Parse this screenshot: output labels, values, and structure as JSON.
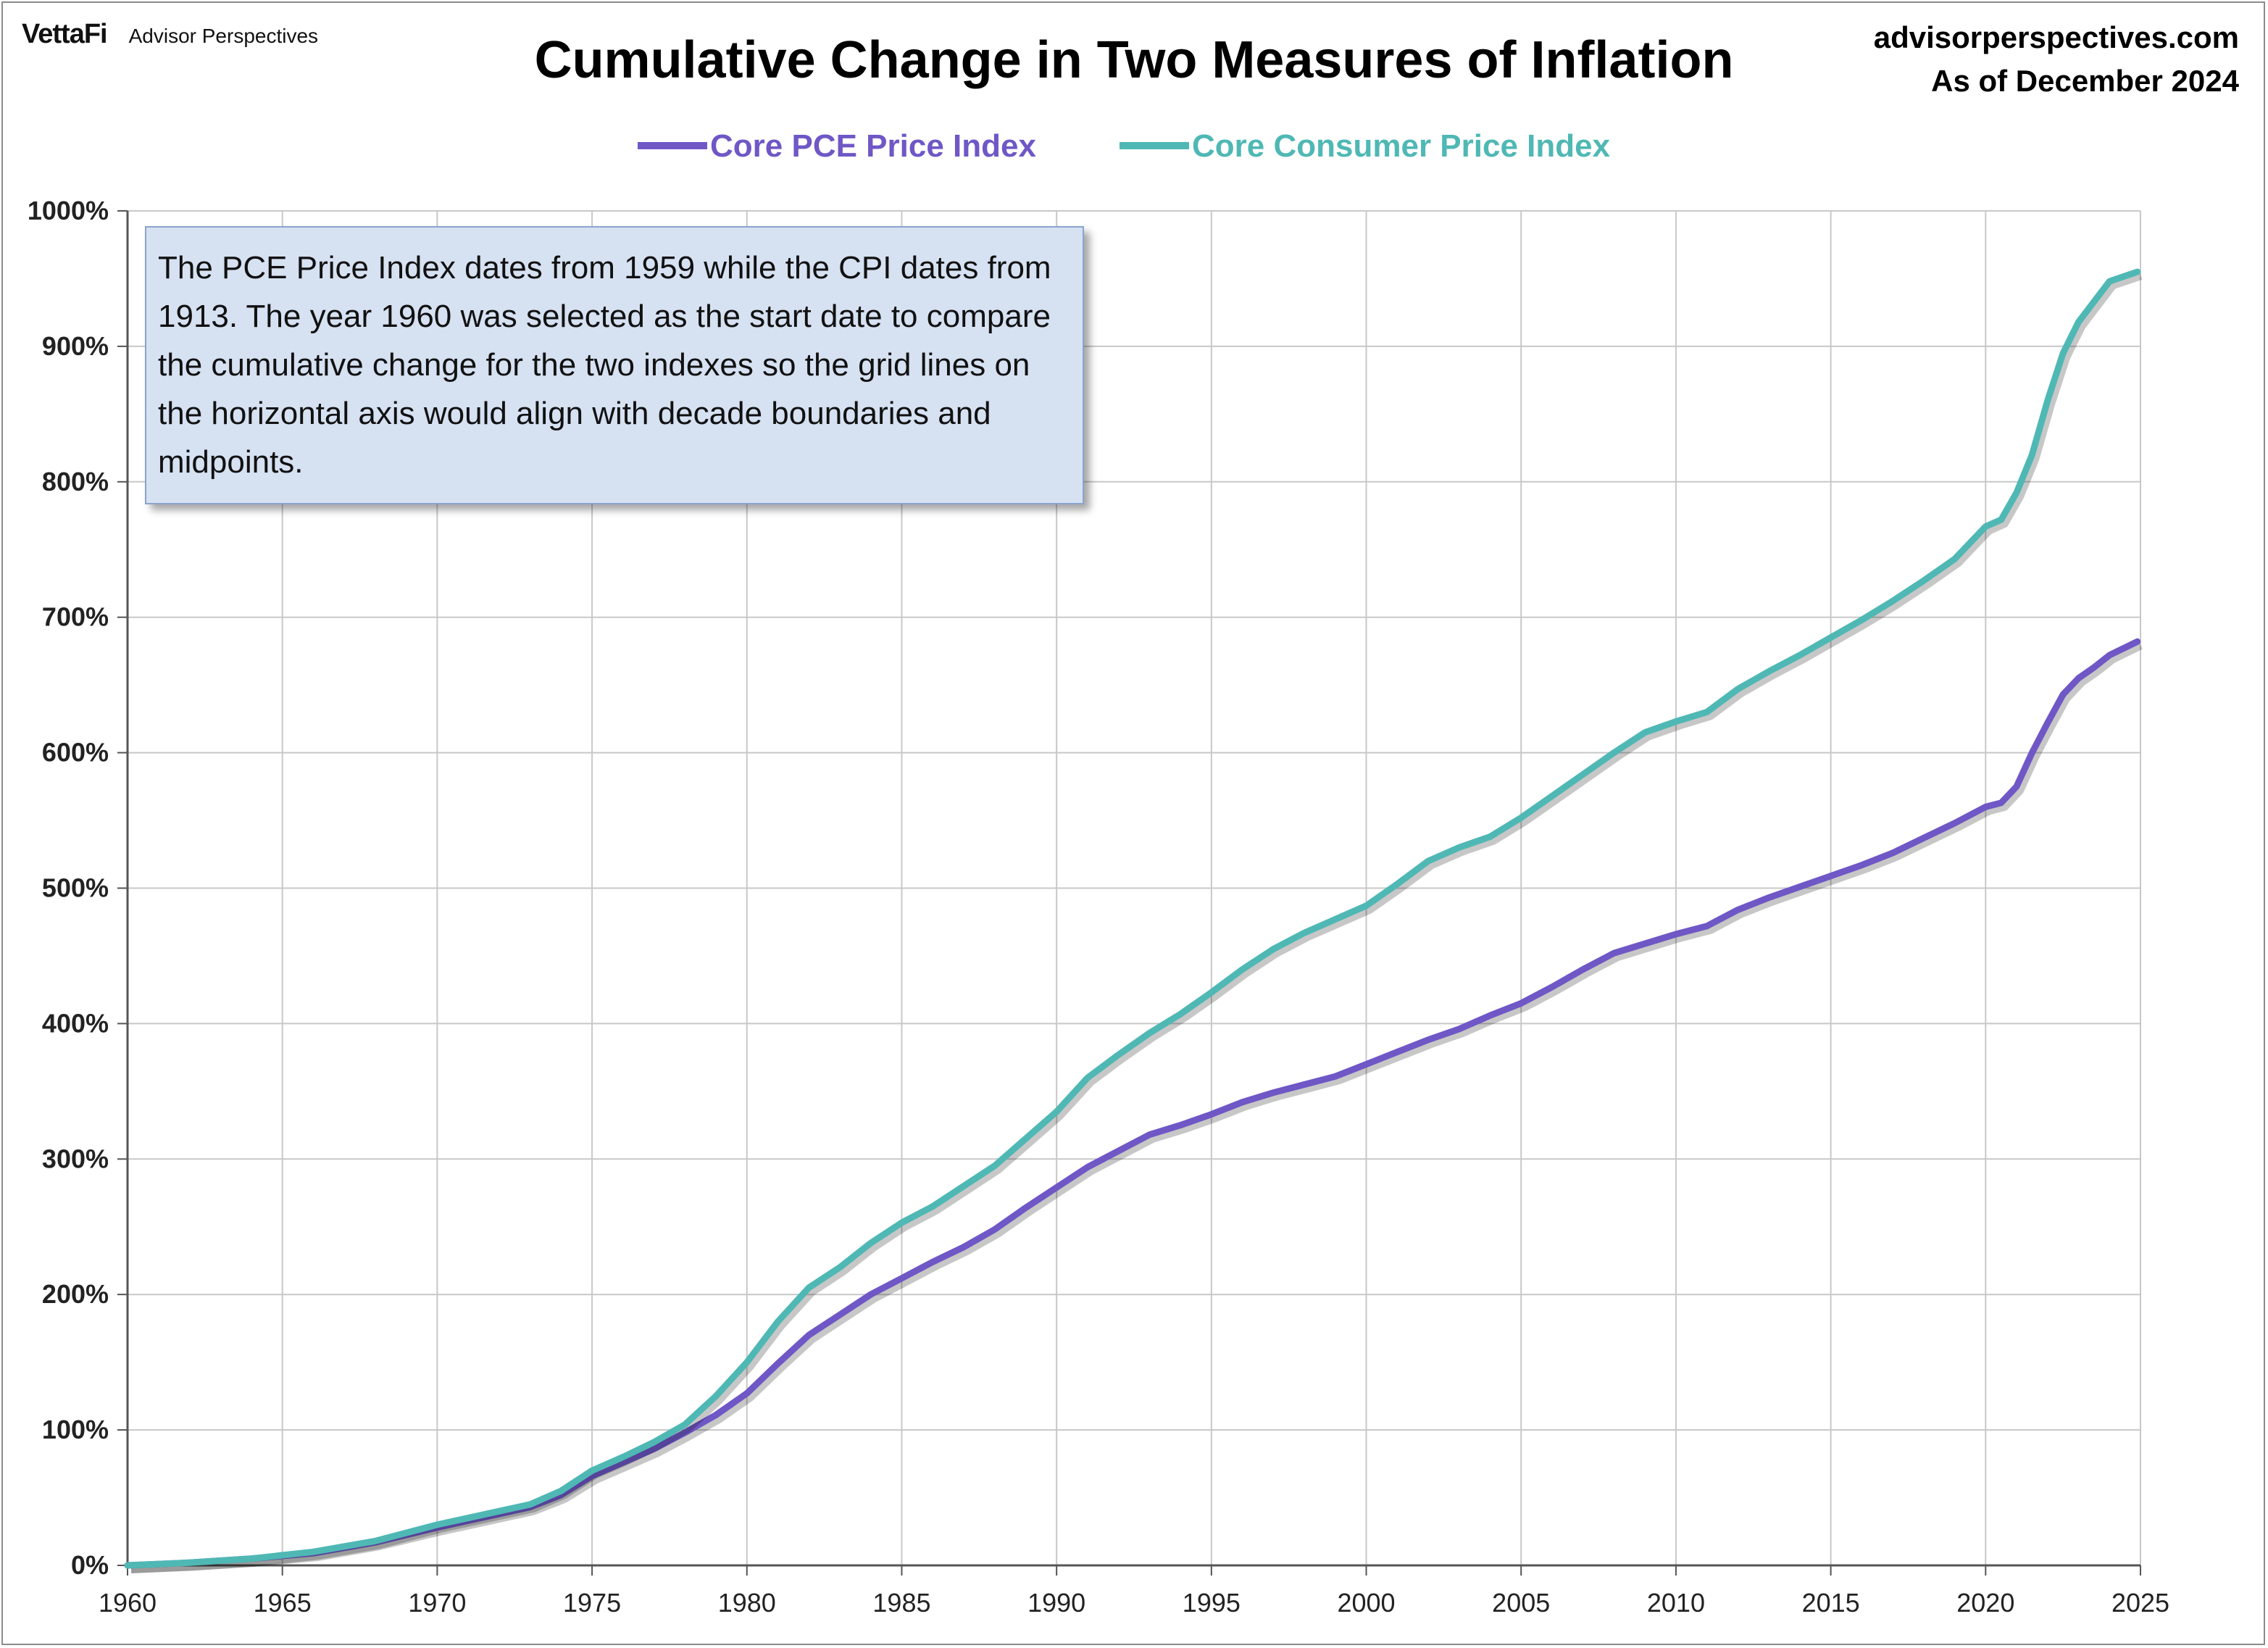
{
  "header": {
    "logo_brand": "VettaFi",
    "logo_sub": "Advisor Perspectives",
    "site": "advisorperspectives.com",
    "as_of": "As of December 2024"
  },
  "note": "The PCE Price Index dates from 1959 while the CPI dates from 1913.  The year 1960 was selected as the start date to compare the cumulative change for the two indexes so the grid lines on the horizontal axis would align with decade boundaries and midpoints.",
  "colors": {
    "pce": "#6f57c6",
    "cpi": "#4fb8b4",
    "grid": "#c8c8c8"
  },
  "chart_data": {
    "type": "line",
    "title": "Cumulative Change in Two Measures of Inflation",
    "xlabel": "",
    "ylabel": "",
    "x_ticks": [
      "1960",
      "1965",
      "1970",
      "1975",
      "1980",
      "1985",
      "1990",
      "1995",
      "2000",
      "2005",
      "2010",
      "2015",
      "2020",
      "2025"
    ],
    "y_ticks": [
      "0%",
      "100%",
      "200%",
      "300%",
      "400%",
      "500%",
      "600%",
      "700%",
      "800%",
      "900%",
      "1000%"
    ],
    "xlim": [
      1960,
      2025
    ],
    "ylim": [
      0,
      1000
    ],
    "grid": true,
    "legend_position": "top-center",
    "series": [
      {
        "name": "Core PCE Price Index",
        "x": [
          1960,
          1962,
          1964,
          1966,
          1968,
          1970,
          1972,
          1973,
          1974,
          1975,
          1976,
          1977,
          1978,
          1979,
          1980,
          1981,
          1982,
          1983,
          1984,
          1985,
          1986,
          1987,
          1988,
          1989,
          1990,
          1991,
          1992,
          1993,
          1994,
          1995,
          1996,
          1997,
          1998,
          1999,
          2000,
          2001,
          2002,
          2003,
          2004,
          2005,
          2006,
          2007,
          2008,
          2009,
          2010,
          2011,
          2012,
          2013,
          2014,
          2015,
          2016,
          2017,
          2018,
          2019,
          2020,
          2020.5,
          2021,
          2021.5,
          2022,
          2022.5,
          2023,
          2023.5,
          2024,
          2024.9
        ],
        "values": [
          0,
          2,
          5,
          9,
          17,
          28,
          38,
          43,
          52,
          66,
          76,
          86,
          98,
          111,
          127,
          149,
          170,
          185,
          200,
          212,
          224,
          235,
          248,
          264,
          279,
          294,
          306,
          318,
          325,
          333,
          342,
          349,
          355,
          361,
          370,
          379,
          388,
          396,
          406,
          415,
          427,
          440,
          452,
          459,
          466,
          472,
          484,
          493,
          501,
          509,
          517,
          526,
          537,
          548,
          560,
          563,
          575,
          600,
          622,
          643,
          655,
          663,
          672,
          682
        ]
      },
      {
        "name": "Core Consumer Price Index",
        "x": [
          1960,
          1962,
          1964,
          1966,
          1968,
          1970,
          1972,
          1973,
          1974,
          1975,
          1976,
          1977,
          1978,
          1979,
          1980,
          1981,
          1982,
          1983,
          1984,
          1985,
          1986,
          1987,
          1988,
          1989,
          1990,
          1991,
          1992,
          1993,
          1994,
          1995,
          1996,
          1997,
          1998,
          1999,
          2000,
          2001,
          2002,
          2003,
          2004,
          2005,
          2006,
          2007,
          2008,
          2009,
          2010,
          2011,
          2012,
          2013,
          2014,
          2015,
          2016,
          2017,
          2018,
          2019,
          2020,
          2020.5,
          2021,
          2021.5,
          2022,
          2022.5,
          2023,
          2023.5,
          2024,
          2024.9
        ],
        "values": [
          0,
          2,
          5,
          10,
          18,
          30,
          40,
          45,
          55,
          70,
          80,
          91,
          104,
          125,
          150,
          180,
          205,
          220,
          238,
          253,
          265,
          280,
          295,
          315,
          335,
          360,
          377,
          393,
          407,
          423,
          440,
          455,
          467,
          477,
          487,
          503,
          520,
          530,
          538,
          552,
          568,
          584,
          600,
          615,
          623,
          630,
          647,
          660,
          672,
          685,
          698,
          712,
          727,
          743,
          767,
          772,
          792,
          820,
          860,
          895,
          918,
          933,
          948,
          955
        ]
      }
    ]
  }
}
